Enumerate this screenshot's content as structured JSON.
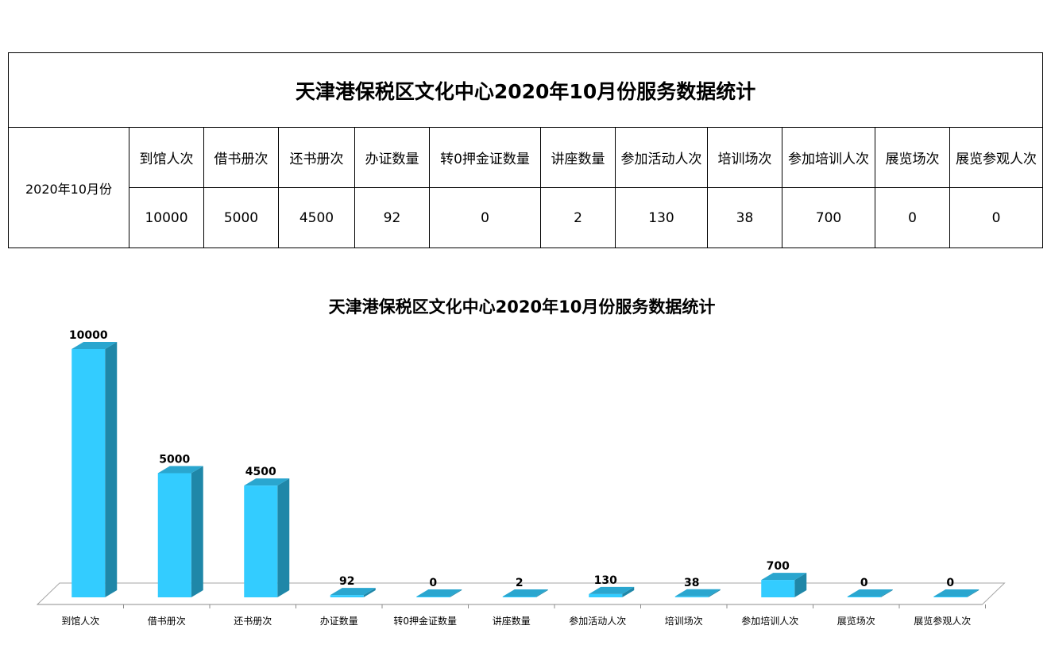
{
  "table": {
    "title": "天津港保税区文化中心2020年10月份服务数据统计",
    "row_label": "2020年10月份",
    "headers": [
      "到馆人次",
      "借书册次",
      "还书册次",
      "办证数量",
      "转0押金证数量",
      "讲座数量",
      "参加活动人次",
      "培训场次",
      "参加培训人次",
      "展览场次",
      "展览参观人次"
    ],
    "values": [
      "10000",
      "5000",
      "4500",
      "92",
      "0",
      "2",
      "130",
      "38",
      "700",
      "0",
      "0"
    ]
  },
  "chart_data": {
    "type": "bar",
    "title": "天津港保税区文化中心2020年10月份服务数据统计",
    "categories": [
      "到馆人次",
      "借书册次",
      "还书册次",
      "办证数量",
      "转0押金证数量",
      "讲座数量",
      "参加活动人次",
      "培训场次",
      "参加培训人次",
      "展览场次",
      "展览参观人次"
    ],
    "values": [
      10000,
      5000,
      4500,
      92,
      0,
      2,
      130,
      38,
      700,
      0,
      0
    ],
    "xlabel": "",
    "ylabel": "",
    "ylim": [
      0,
      10000
    ],
    "grid": false,
    "legend": "none",
    "style": "3d-column",
    "colors": {
      "bar_front": "#33ccff",
      "bar_side": "#1f87a8",
      "bar_top": "#2aa6cf"
    }
  }
}
